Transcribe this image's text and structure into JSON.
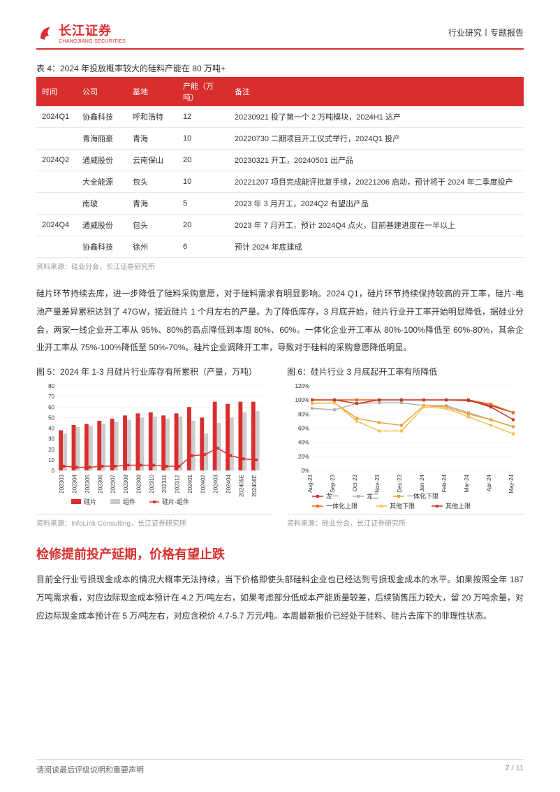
{
  "header": {
    "brand": "长江证券",
    "brand_sub": "CHANGJIANG SECURITIES",
    "right": "行业研究丨专题报告"
  },
  "table4": {
    "title": "表 4：2024 年投放概率较大的硅料产能在 80 万吨+",
    "columns": [
      "时间",
      "公司",
      "基地",
      "产能（万吨）",
      "备注"
    ],
    "rows": [
      {
        "period": "2024Q1",
        "company": "协鑫科技",
        "base": "呼和浩特",
        "cap": "12",
        "remark": "20230921 投了第一个 2 万吨模块，2024H1 达产"
      },
      {
        "period": "",
        "company": "青海丽豪",
        "base": "青海",
        "cap": "10",
        "remark": "20220730 二期项目开工仪式举行，2024Q1 投产"
      },
      {
        "period": "2024Q2",
        "company": "通威股份",
        "base": "云南保山",
        "cap": "20",
        "remark": "20230321 开工，20240501 出产品"
      },
      {
        "period": "",
        "company": "大全能源",
        "base": "包头",
        "cap": "10",
        "remark": "20221207 项目完成能评批复手续，20221206 启动，预计将于 2024 年二季度投产"
      },
      {
        "period": "",
        "company": "南玻",
        "base": "青海",
        "cap": "5",
        "remark": "2023 年 3 月开工，2024Q2 有望出产品"
      },
      {
        "period": "2024Q4",
        "company": "通威股份",
        "base": "包头",
        "cap": "20",
        "remark": "2023 年 7 月开工，预计 2024Q4 点火，目前基建进度在一半以上"
      },
      {
        "period": "",
        "company": "协鑫科技",
        "base": "徐州",
        "cap": "6",
        "remark": "预计 2024 年底建成"
      }
    ],
    "colwidths": [
      "58px",
      "72px",
      "72px",
      "74px",
      "auto"
    ],
    "header_bg": "#d92e2e",
    "header_fg": "#ffffff",
    "border_color": "#e8e8e8",
    "source": "资料来源：硅业分会，长江证券研究所"
  },
  "paragraph1": "硅片环节持续去库，进一步降低了硅料采购意愿，对于硅料需求有明显影响。2024 Q1，硅片环节持续保持较高的开工率，硅片-电池产量差异累积达到了 47GW，接近硅片 1 个月左右的产量。为了降低库存，3 月底开始，硅片行业开工率开始明显降低，据硅业分会，两家一线企业开工率从 95%、80%的高点降低到本周 80%、60%。一体化企业开工率从 80%-100%降低至 60%-80%，其余企业开工率从 75%-100%降低至 50%-70%。硅片企业调降开工率，导致对于硅料的采购意愿降低明显。",
  "chart5": {
    "type": "bar+line",
    "title": "图 5：2024 年 1-3 月硅片行业库存有所累积（产量，万吨）",
    "categories": [
      "202303",
      "202304",
      "202305",
      "202306",
      "202307",
      "202308",
      "202309",
      "202310",
      "202311",
      "202312",
      "202401",
      "202402",
      "202403",
      "202404",
      "202405E",
      "202406E"
    ],
    "series": [
      {
        "name": "硅片",
        "type": "bar",
        "color": "#d92e2e",
        "values": [
          38,
          43,
          44,
          47,
          49,
          52,
          54,
          55,
          52,
          54,
          60,
          50,
          65,
          63,
          65,
          65
        ]
      },
      {
        "name": "组件",
        "type": "bar",
        "color": "#cccccc",
        "values": [
          35,
          41,
          42,
          44,
          46,
          48,
          50,
          51,
          49,
          51,
          47,
          35,
          45,
          50,
          55,
          56
        ]
      },
      {
        "name": "硅片-组件",
        "type": "line",
        "color": "#d92e2e",
        "values": [
          4,
          3,
          3,
          4,
          4,
          5,
          5,
          5,
          4,
          4,
          14,
          15,
          21,
          14,
          11,
          10
        ]
      }
    ],
    "ylim": [
      0,
      80
    ],
    "ytick_step": 10,
    "background_color": "#ffffff",
    "grid_color": "#e8e8e8",
    "label_fontsize": 8,
    "legend_fontsize": 9,
    "source": "资料来源：InfoLink Consulting，长江证券研究所"
  },
  "chart6": {
    "type": "line",
    "title": "图 6：硅片行业 3 月底起开工率有所降低",
    "categories": [
      "Aug-23",
      "Sep-23",
      "Oct-23",
      "Nov-23",
      "Dec-23",
      "Jan-24",
      "Feb-24",
      "Mar-24",
      "Apr-24",
      "May-24"
    ],
    "series": [
      {
        "name": "龙一",
        "color": "#d92e2e",
        "marker": "square",
        "values": [
          100,
          100,
          100,
          100,
          100,
          100,
          100,
          99,
          92,
          82
        ]
      },
      {
        "name": "龙二",
        "color": "#b0b0b0",
        "marker": "square",
        "values": [
          88,
          86,
          95,
          96,
          96,
          92,
          92,
          82,
          72,
          62
        ]
      },
      {
        "name": "一体化下限",
        "color": "#f0a030",
        "marker": "square",
        "values": [
          95,
          96,
          74,
          68,
          64,
          92,
          90,
          80,
          72,
          62
        ]
      },
      {
        "name": "一体化上限",
        "color": "#e66a1f",
        "marker": "square",
        "values": [
          100,
          100,
          100,
          100,
          100,
          100,
          100,
          100,
          94,
          82
        ]
      },
      {
        "name": "其他下限",
        "color": "#f6c050",
        "marker": "square",
        "values": [
          95,
          96,
          70,
          56,
          56,
          90,
          88,
          76,
          64,
          52
        ]
      },
      {
        "name": "其他上限",
        "color": "#c0392b",
        "marker": "square",
        "values": [
          100,
          100,
          95,
          100,
          100,
          100,
          100,
          100,
          90,
          72
        ]
      }
    ],
    "ylim": [
      0,
      120
    ],
    "ytick_step": 20,
    "ytick_suffix": "%",
    "background_color": "#ffffff",
    "grid_color": "#e8e8e8",
    "label_fontsize": 8,
    "legend_fontsize": 9,
    "source": "资料来源：硅业分会，长江证券研究所"
  },
  "section_head": "检修提前投产延期，价格有望止跌",
  "paragraph2": "目前全行业亏损现金成本的情况大概率无法持续，当下价格即使头部硅料企业也已经达到亏损现金成本的水平。如果按照全年 187 万吨需求看，对应边际现金成本预计在 4.2 万/吨左右，如果考虑部分低成本产能质量较差，后续销售压力较大，留 20 万吨余量，对应边际现金成本预计在 5 万/吨左右，对应含税价 4.7-5.7 万元/吨。本周最新报价已经处于硅料、硅片去库下的非理性状态。",
  "footer": {
    "left": "请阅读最后评级说明和重要声明",
    "page_current": "7",
    "page_sep": "/",
    "page_total": "11"
  },
  "colors": {
    "brand_red": "#d92e2e",
    "text": "#333333",
    "muted": "#999999",
    "grid": "#e8e8e8"
  }
}
